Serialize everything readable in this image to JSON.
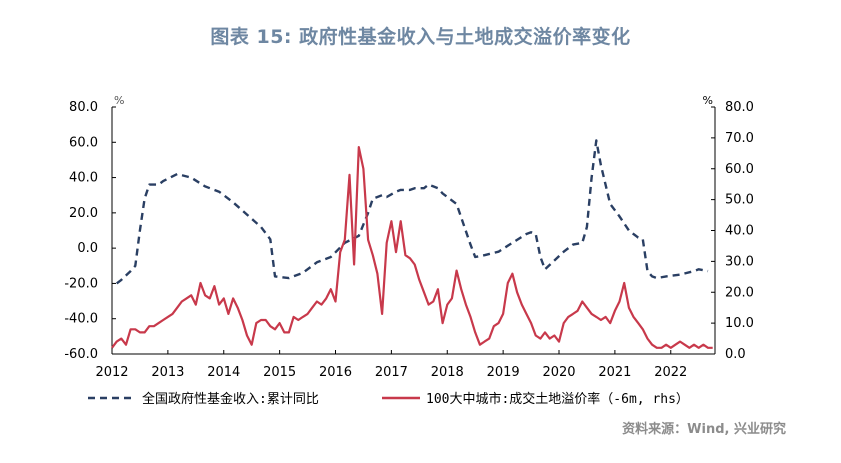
{
  "title": "图表 15: 政府性基金收入与土地成交溢价率变化",
  "source": "资料来源：Wind, 兴业研究",
  "chart_data": {
    "type": "line",
    "title": "图表 15: 政府性基金收入与土地成交溢价率变化",
    "x_axis": {
      "ticks": [
        "2012",
        "2013",
        "2014",
        "2015",
        "2016",
        "2017",
        "2018",
        "2019",
        "2020",
        "2021",
        "2022"
      ],
      "range": [
        "2012-01",
        "2022-10"
      ]
    },
    "y_left": {
      "unit": "%",
      "range": [
        -60,
        80
      ],
      "ticks": [
        "-60.0",
        "-40.0",
        "-20.0",
        "0.0",
        "20.0",
        "40.0",
        "60.0",
        "80.0"
      ]
    },
    "y_right": {
      "unit": "%",
      "range": [
        0,
        80
      ],
      "ticks": [
        "0.0",
        "10.0",
        "20.0",
        "30.0",
        "40.0",
        "50.0",
        "60.0",
        "70.0",
        "80.0"
      ]
    },
    "grid": false,
    "legend_position": "bottom",
    "series": [
      {
        "name": "全国政府性基金收入:累计同比",
        "axis": "left",
        "color": "#2a3f63",
        "style": "dashed",
        "x": [
          "2012-02",
          "2012-03",
          "2012-05",
          "2012-06",
          "2012-07",
          "2012-08",
          "2012-09",
          "2012-10",
          "2012-11",
          "2012-12",
          "2013-03",
          "2013-06",
          "2013-09",
          "2013-12",
          "2014-03",
          "2014-06",
          "2014-09",
          "2014-11",
          "2014-12",
          "2015-03",
          "2015-06",
          "2015-09",
          "2015-12",
          "2016-03",
          "2016-06",
          "2016-08",
          "2016-09",
          "2016-11",
          "2016-12",
          "2017-02",
          "2017-03",
          "2017-05",
          "2017-06",
          "2017-08",
          "2017-09",
          "2017-10",
          "2017-11",
          "2017-12",
          "2018-03",
          "2018-06",
          "2018-07",
          "2018-09",
          "2018-12",
          "2019-03",
          "2019-06",
          "2019-07",
          "2019-08",
          "2019-09",
          "2019-10",
          "2019-12",
          "2020-02",
          "2020-04",
          "2020-06",
          "2020-07",
          "2020-08",
          "2020-09",
          "2020-10",
          "2020-12",
          "2021-02",
          "2021-04",
          "2021-06",
          "2021-07",
          "2021-08",
          "2021-09",
          "2021-10",
          "2021-12",
          "2022-03",
          "2022-06",
          "2022-07",
          "2022-09"
        ],
        "values": [
          -20,
          -18,
          -13,
          -10,
          10,
          28,
          36,
          36,
          36,
          38,
          42,
          40,
          35,
          32,
          26,
          19,
          12,
          5,
          -16,
          -17,
          -14,
          -8,
          -5,
          3,
          7,
          20,
          28,
          30,
          29,
          32,
          33,
          33,
          34,
          34,
          36,
          35,
          34,
          31,
          25,
          2,
          -5,
          -4,
          -2,
          3,
          8,
          9,
          8,
          -5,
          -12,
          -7,
          -2,
          2,
          3,
          12,
          40,
          61,
          47,
          25,
          18,
          10,
          6,
          5,
          -13,
          -16,
          -17,
          -16,
          -15,
          -13,
          -12,
          -13
        ]
      },
      {
        "name": "100大中城市:成交土地溢价率（-6m, rhs）",
        "axis": "right",
        "color": "#c8394b",
        "style": "solid",
        "x": [
          "2012-01",
          "2012-02",
          "2012-03",
          "2012-04",
          "2012-05",
          "2012-06",
          "2012-07",
          "2012-08",
          "2012-09",
          "2012-10",
          "2012-11",
          "2012-12",
          "2013-01",
          "2013-02",
          "2013-03",
          "2013-04",
          "2013-05",
          "2013-06",
          "2013-07",
          "2013-08",
          "2013-09",
          "2013-10",
          "2013-11",
          "2013-12",
          "2014-01",
          "2014-02",
          "2014-03",
          "2014-04",
          "2014-05",
          "2014-06",
          "2014-07",
          "2014-08",
          "2014-09",
          "2014-10",
          "2014-11",
          "2014-12",
          "2015-01",
          "2015-02",
          "2015-03",
          "2015-04",
          "2015-05",
          "2015-06",
          "2015-07",
          "2015-08",
          "2015-09",
          "2015-10",
          "2015-11",
          "2015-12",
          "2016-01",
          "2016-02",
          "2016-03",
          "2016-04",
          "2016-05",
          "2016-06",
          "2016-07",
          "2016-08",
          "2016-09",
          "2016-10",
          "2016-11",
          "2016-12",
          "2017-01",
          "2017-02",
          "2017-03",
          "2017-04",
          "2017-05",
          "2017-06",
          "2017-07",
          "2017-08",
          "2017-09",
          "2017-10",
          "2017-11",
          "2017-12",
          "2018-01",
          "2018-02",
          "2018-03",
          "2018-04",
          "2018-05",
          "2018-06",
          "2018-07",
          "2018-08",
          "2018-09",
          "2018-10",
          "2018-11",
          "2018-12",
          "2019-01",
          "2019-02",
          "2019-03",
          "2019-04",
          "2019-05",
          "2019-06",
          "2019-07",
          "2019-08",
          "2019-09",
          "2019-10",
          "2019-11",
          "2019-12",
          "2020-01",
          "2020-02",
          "2020-03",
          "2020-04",
          "2020-05",
          "2020-06",
          "2020-07",
          "2020-08",
          "2020-09",
          "2020-10",
          "2020-11",
          "2020-12",
          "2021-01",
          "2021-02",
          "2021-03",
          "2021-04",
          "2021-05",
          "2021-06",
          "2021-07",
          "2021-08",
          "2021-09",
          "2021-10",
          "2021-11",
          "2021-12",
          "2022-01",
          "2022-02",
          "2022-03",
          "2022-04",
          "2022-05",
          "2022-06",
          "2022-07",
          "2022-08",
          "2022-09",
          "2022-10"
        ],
        "values": [
          2,
          4,
          5,
          3,
          8,
          8,
          7,
          7,
          9,
          9,
          10,
          11,
          12,
          13,
          15,
          17,
          18,
          19,
          16,
          23,
          19,
          18,
          22,
          16,
          18,
          13,
          18,
          15,
          11,
          6,
          3,
          10,
          11,
          11,
          9,
          8,
          10,
          7,
          7,
          12,
          11,
          12,
          13,
          15,
          17,
          16,
          18,
          21,
          17,
          33,
          37,
          58,
          29,
          67,
          60,
          37,
          32,
          26,
          13,
          36,
          43,
          33,
          43,
          32,
          31,
          29,
          24,
          20,
          16,
          17,
          21,
          10,
          16,
          18,
          27,
          21,
          16,
          12,
          7,
          3,
          4,
          5,
          9,
          10,
          13,
          23,
          26,
          20,
          16,
          13,
          10,
          6,
          5,
          7,
          5,
          6,
          4,
          10,
          12,
          13,
          14,
          17,
          15,
          13,
          12,
          11,
          12,
          10,
          14,
          17,
          23,
          15,
          12,
          10,
          8,
          5,
          3,
          2,
          2,
          3,
          2,
          3,
          4,
          3,
          2,
          3,
          2,
          3,
          2,
          2
        ]
      }
    ],
    "legend": [
      "全国政府性基金收入:累计同比",
      "100大中城市:成交土地溢价率（-6m, rhs）"
    ]
  }
}
